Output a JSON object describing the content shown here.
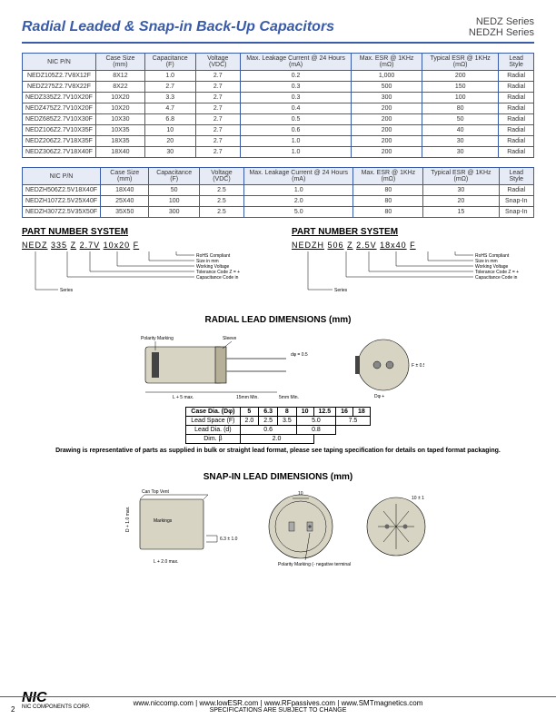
{
  "header": {
    "title": "Radial Leaded & Snap-in Back-Up Capacitors",
    "series1": "NEDZ Series",
    "series2": "NEDZH Series"
  },
  "table1": {
    "headers": [
      "NIC P/N",
      "Case Size (mm)",
      "Capacitance (F)",
      "Voltage (VDC)",
      "Max. Leakage Current @ 24 Hours (mA)",
      "Max. ESR @ 1KHz (mΩ)",
      "Typical ESR @ 1KHz (mΩ)",
      "Lead Style"
    ],
    "rows": [
      [
        "NEDZ105Z2.7V8X12F",
        "8X12",
        "1.0",
        "2.7",
        "0.2",
        "1,000",
        "200",
        "Radial"
      ],
      [
        "NEDZ275Z2.7V8X22F",
        "8X22",
        "2.7",
        "2.7",
        "0.3",
        "500",
        "150",
        "Radial"
      ],
      [
        "NEDZ335Z2.7V10X20F",
        "10X20",
        "3.3",
        "2.7",
        "0.3",
        "300",
        "100",
        "Radial"
      ],
      [
        "NEDZ475Z2.7V10X20F",
        "10X20",
        "4.7",
        "2.7",
        "0.4",
        "200",
        "80",
        "Radial"
      ],
      [
        "NEDZ685Z2.7V10X30F",
        "10X30",
        "6.8",
        "2.7",
        "0.5",
        "200",
        "50",
        "Radial"
      ],
      [
        "NEDZ106Z2.7V10X35F",
        "10X35",
        "10",
        "2.7",
        "0.6",
        "200",
        "40",
        "Radial"
      ],
      [
        "NEDZ206Z2.7V18X35F",
        "18X35",
        "20",
        "2.7",
        "1.0",
        "200",
        "30",
        "Radial"
      ],
      [
        "NEDZ306Z2.7V18X40F",
        "18X40",
        "30",
        "2.7",
        "1.0",
        "200",
        "30",
        "Radial"
      ]
    ]
  },
  "table2": {
    "headers": [
      "NIC P/N",
      "Case Size (mm)",
      "Capacitance (F)",
      "Voltage (VDC)",
      "Max. Leakage Current @ 24 Hours (mA)",
      "Max. ESR @ 1KHz (mΩ)",
      "Typical ESR @ 1KHz (mΩ)",
      "Lead Style"
    ],
    "rows": [
      [
        "NEDZH506Z2.5V18X40F",
        "18X40",
        "50",
        "2.5",
        "1.0",
        "80",
        "30",
        "Radial"
      ],
      [
        "NEDZH107Z2.5V25X40F",
        "25X40",
        "100",
        "2.5",
        "2.0",
        "80",
        "20",
        "Snap-In"
      ],
      [
        "NEDZH307Z2.5V35X50F",
        "35X50",
        "300",
        "2.5",
        "5.0",
        "80",
        "15",
        "Snap-In"
      ]
    ]
  },
  "pns1": {
    "title": "PART NUMBER SYSTEM",
    "prefix": "NEDZ",
    "parts": [
      "335",
      "Z",
      "2.7V",
      "10x20",
      "F"
    ],
    "labels": [
      "RoHS Compliant",
      "Size in mm",
      "Working Voltage",
      "Tolerance Code Z = +80%/-20%",
      "Capacitance Code in uF, first 2 digits are significant, third digit is no. of zeros",
      "Series"
    ]
  },
  "pns2": {
    "title": "PART NUMBER SYSTEM",
    "prefix": "NEDZH",
    "parts": [
      "506",
      "Z",
      "2.5V",
      "18x40",
      "F"
    ],
    "labels": [
      "RoHS Compliant",
      "Size in mm",
      "Working Voltage",
      "Tolerance Code Z = +80%/-20%",
      "Capacitance Code in uF, first 2 digits are significant, third digit is no. of zeros",
      "Series"
    ]
  },
  "radial_dim": {
    "title": "RADIAL LEAD DIMENSIONS (mm)",
    "diagram_labels": {
      "polarity": "Polarity Marking",
      "sleeve": "Sleeve",
      "d": "dφ = 0.5",
      "L": "L + 5 max.",
      "lead": "15mm Min.",
      "gap": "5mm Min.",
      "D": "Dφ +",
      "pitch": "F ± 0.5"
    },
    "table_headers": [
      "Case Dia. (Dφ)",
      "5",
      "6.3",
      "8",
      "10",
      "12.5",
      "16",
      "18"
    ],
    "table_rows": [
      [
        "Lead Space (F)",
        "2.0",
        "2.5",
        "3.5",
        "5.0",
        "",
        "7.5",
        ""
      ],
      [
        "Lead Dia. (d)",
        "",
        "",
        "0.6",
        "",
        "",
        "0.8",
        ""
      ],
      [
        "Dim. β",
        "",
        "",
        "",
        "2.0",
        "",
        "",
        ""
      ]
    ],
    "note": "Drawing is representative of parts as supplied in bulk or straight lead format, please see taping specification for details on taped format packaging."
  },
  "snapin_dim": {
    "title": "SNAP-IN LEAD DIMENSIONS (mm)",
    "labels": {
      "vent": "Can Top Vent",
      "mark": "Markings",
      "D": "D + 1.0 max.",
      "L": "L + 2.0 max.",
      "t": "6.3 ± 1.0",
      "pitch": "10",
      "polarity": "Polarity Marking (- negative terminal marked by cross notch)",
      "pitch2": "10 ± 1"
    }
  },
  "footer": {
    "corp": "NIC COMPONENTS CORP.",
    "urls": "www.niccomp.com  |  www.lowESR.com  |  www.RFpassives.com  |  www.SMTmagnetics.com",
    "spec": "SPECIFICATIONS ARE SUBJECT TO CHANGE",
    "page": "2"
  }
}
